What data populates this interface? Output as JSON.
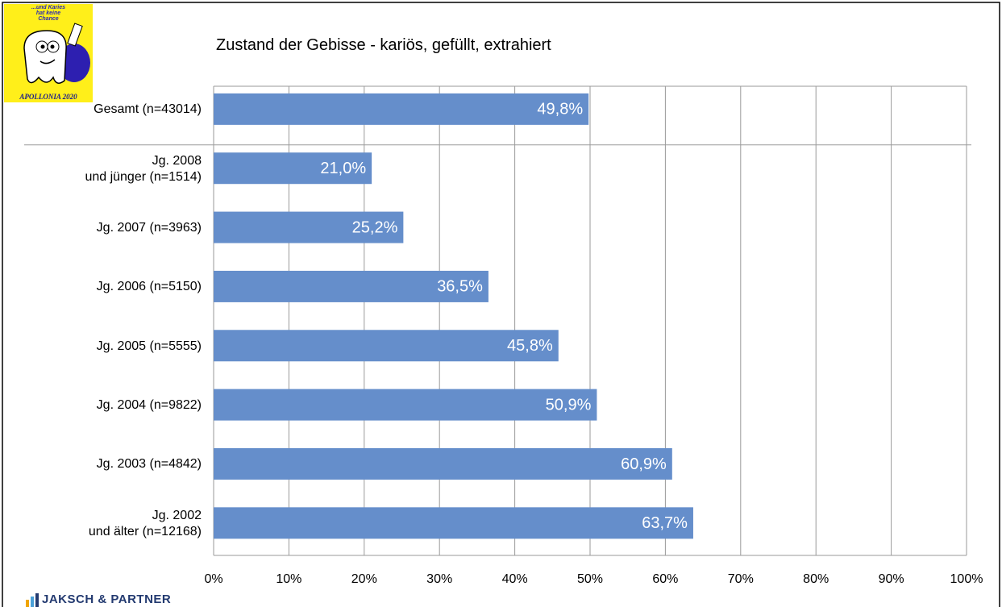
{
  "logo": {
    "slogan": "...und Karies\nhat keine\nChance",
    "name": "APOLLONIA 2020"
  },
  "footer": "JAKSCH & PARTNER",
  "chart_data": {
    "type": "bar",
    "orientation": "horizontal",
    "title": "Zustand der Gebisse - kariös, gefüllt, extrahiert",
    "categories": [
      "Gesamt (n=43014)",
      "Jg. 2008\nund jünger (n=1514)",
      "Jg. 2007 (n=3963)",
      "Jg. 2006 (n=5150)",
      "Jg. 2005 (n=5555)",
      "Jg. 2004 (n=9822)",
      "Jg. 2003 (n=4842)",
      "Jg. 2002\nund älter (n=12168)"
    ],
    "values": [
      49.8,
      21.0,
      25.2,
      36.5,
      45.8,
      50.9,
      60.9,
      63.7
    ],
    "value_labels": [
      "49,8%",
      "21,0%",
      "25,2%",
      "36,5%",
      "45,8%",
      "50,9%",
      "60,9%",
      "63,7%"
    ],
    "color": "#658ecb",
    "xlim": [
      0,
      100
    ],
    "xticks": [
      {
        "value": 0,
        "label": "0%"
      },
      {
        "value": 10,
        "label": "10%"
      },
      {
        "value": 20,
        "label": "20%"
      },
      {
        "value": 30,
        "label": "30%"
      },
      {
        "value": 40,
        "label": "40%"
      },
      {
        "value": 50,
        "label": "50%"
      },
      {
        "value": 60,
        "label": "60%"
      },
      {
        "value": 70,
        "label": "70%"
      },
      {
        "value": 80,
        "label": "80%"
      },
      {
        "value": 90,
        "label": "90%"
      },
      {
        "value": 100,
        "label": "100%"
      }
    ],
    "grid": true
  }
}
